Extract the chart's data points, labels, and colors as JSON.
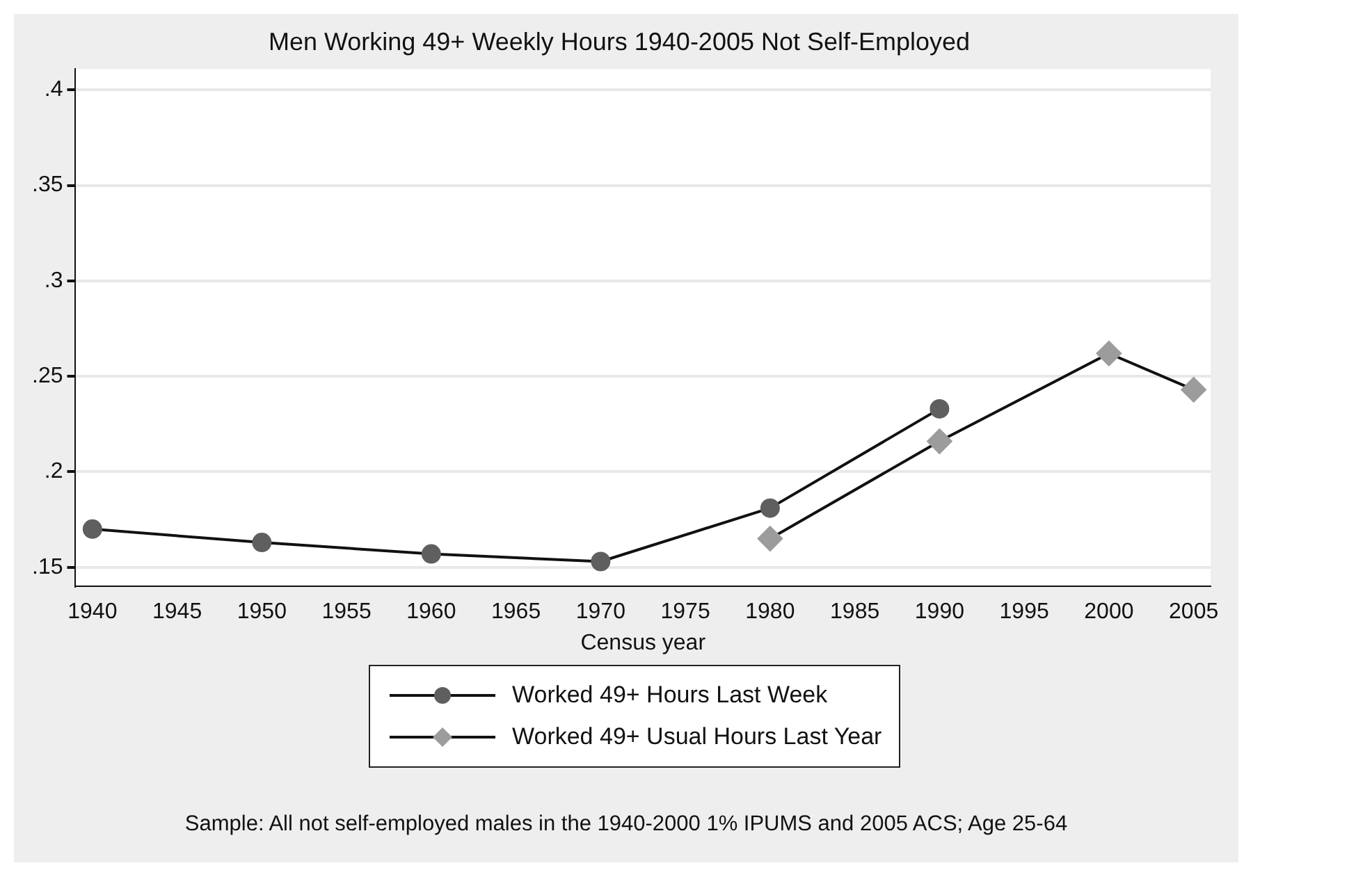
{
  "chart_data": {
    "type": "line",
    "title": "Men Working 49+ Weekly Hours 1940-2005 Not Self-Employed",
    "xlabel": "Census year",
    "x": [
      1940,
      1950,
      1960,
      1970,
      1980,
      1990,
      2000,
      2005
    ],
    "series": [
      {
        "name": "Worked 49+ Hours Last Week",
        "color": "#5f5f5f",
        "marker": "circle",
        "values": [
          0.17,
          0.163,
          0.157,
          0.153,
          0.181,
          0.233,
          null,
          null
        ]
      },
      {
        "name": "Worked 49+ Usual Hours Last Year",
        "color": "#9c9c9c",
        "marker": "diamond",
        "values": [
          null,
          null,
          null,
          null,
          0.165,
          0.216,
          0.262,
          0.243
        ]
      }
    ],
    "xlim": [
      1939,
      2006
    ],
    "xticks": [
      1940,
      1945,
      1950,
      1955,
      1960,
      1965,
      1970,
      1975,
      1980,
      1985,
      1990,
      1995,
      2000,
      2005
    ],
    "ylim": [
      0.14,
      0.411
    ],
    "yticks": [
      {
        "value": 0.15,
        "label": ".15"
      },
      {
        "value": 0.2,
        "label": ".2"
      },
      {
        "value": 0.25,
        "label": ".25"
      },
      {
        "value": 0.3,
        "label": ".3"
      },
      {
        "value": 0.35,
        "label": ".35"
      },
      {
        "value": 0.4,
        "label": ".4"
      }
    ],
    "grid": "y",
    "legend": "bottom",
    "annotations": [
      "Sample: All not self-employed males in the 1940-2000 1% IPUMS and 2005 ACS; Age 25-64"
    ]
  }
}
